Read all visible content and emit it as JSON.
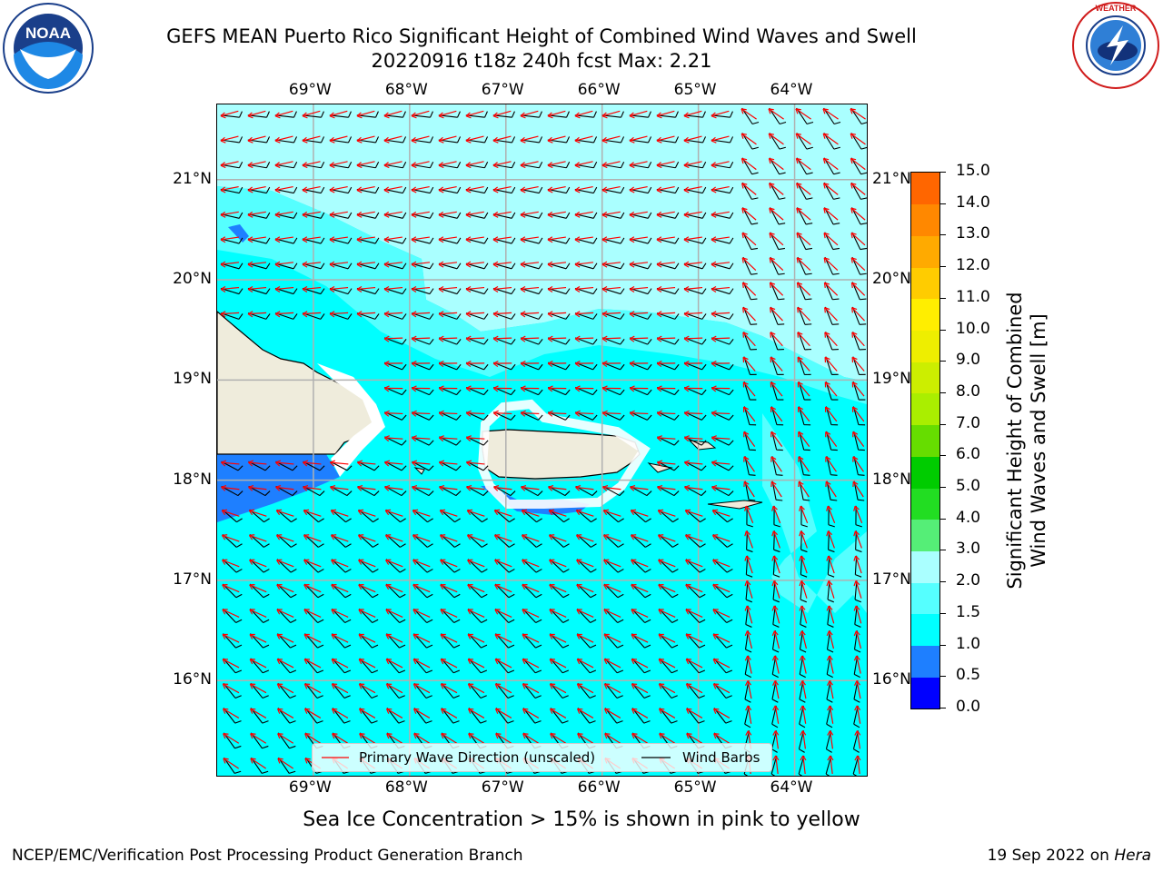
{
  "header": {
    "title_line1": "GEFS MEAN Puerto Rico Significant Height of Combined Wind Waves and Swell",
    "title_line2": "20220916 t18z 240h fcst   Max: 2.21"
  },
  "logos": {
    "left": {
      "name": "NOAA",
      "ring_text": "NATIONAL OCEANIC AND ATMOSPHERIC ADMINISTRATION · U.S. DEPARTMENT OF COMMERCE"
    },
    "right": {
      "name": "NATIONAL WEATHER SERVICE"
    }
  },
  "map": {
    "lon_labels": [
      "69°W",
      "68°W",
      "67°W",
      "66°W",
      "65°W",
      "64°W"
    ],
    "lat_labels": [
      "21°N",
      "20°N",
      "19°N",
      "18°N",
      "17°N",
      "16°N"
    ],
    "lon_range": [
      -70.0,
      -63.25
    ],
    "lat_range": [
      15.05,
      21.75
    ],
    "land_color": "#efecdc",
    "legend": {
      "wave_label": "Primary Wave Direction (unscaled)",
      "barb_label": "Wind Barbs",
      "wave_color": "#ff0000",
      "barb_color": "#000000"
    }
  },
  "colorbar": {
    "title_line1": "Significant Height of Combined",
    "title_line2": "Wind Waves and Swell [m]",
    "labels": [
      "15.0",
      "14.0",
      "13.0",
      "12.0",
      "11.0",
      "10.0",
      "9.0",
      "8.0",
      "7.0",
      "6.0",
      "5.0",
      "4.0",
      "3.0",
      "2.0",
      "1.5",
      "1.0",
      "0.5",
      "0.0"
    ],
    "colors": [
      "#0000ff",
      "#1e7fff",
      "#00ffff",
      "#55ffff",
      "#aaffff",
      "#55ee77",
      "#22dd22",
      "#00cc00",
      "#66dd00",
      "#aaee00",
      "#ccee00",
      "#eeee00",
      "#ffee00",
      "#ffcc00",
      "#ffaa00",
      "#ff8800",
      "#ff6600",
      "#ff3300",
      "#ff0000"
    ]
  },
  "footer": {
    "sea_ice_note": "Sea Ice Concentration > 15% is shown in pink to yellow",
    "credit_left": "NCEP/EMC/Verification Post Processing Product Generation Branch",
    "credit_right_date": "19 Sep 2022 on ",
    "credit_right_host": "Hera"
  }
}
